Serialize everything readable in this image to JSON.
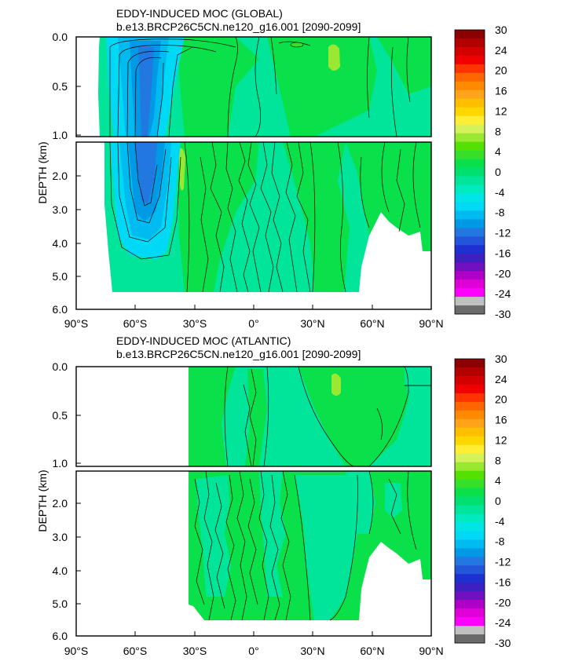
{
  "chart_data": [
    {
      "type": "heatmap",
      "title": "EDDY-INDUCED MOC (GLOBAL)",
      "subtitle": "b.e13.BRCP26C5CN.ne120_g16.001 [2090-2099]",
      "ylabel": "DEPTH (km)",
      "xlim": [
        -90,
        90
      ],
      "ylim_upper": [
        0.0,
        1.0
      ],
      "ylim_lower": [
        1.0,
        6.0
      ],
      "x_ticks": [
        "90°S",
        "60°S",
        "30°S",
        "0°",
        "30°N",
        "60°N",
        "90°N"
      ],
      "y_ticks_upper": [
        "0.0",
        "0.5",
        "1.0"
      ],
      "y_ticks_lower": [
        "2.0",
        "3.0",
        "4.0",
        "5.0",
        "6.0"
      ],
      "basin_start_lat": -80,
      "features": [
        {
          "name": "southern-ocean-cell",
          "lat": [
            -68,
            -38
          ],
          "depth": [
            0.0,
            4.6
          ],
          "min_value": -14
        },
        {
          "name": "southern-flank-positive",
          "lat": [
            -36,
            -30
          ],
          "depth": [
            1.2,
            2.6
          ],
          "max_value": 2
        },
        {
          "name": "northern-positive-cell",
          "lat": [
            38,
            46
          ],
          "depth": [
            0.0,
            0.9
          ],
          "max_value": 3
        },
        {
          "name": "equatorial-positive",
          "lat": [
            8,
            14
          ],
          "depth": [
            0.0,
            0.3
          ],
          "max_value": 2
        }
      ]
    },
    {
      "type": "heatmap",
      "title": "EDDY-INDUCED MOC (ATLANTIC)",
      "subtitle": "b.e13.BRCP26C5CN.ne120_g16.001 [2090-2099]",
      "ylabel": "DEPTH (km)",
      "xlim": [
        -90,
        90
      ],
      "ylim_upper": [
        0.0,
        1.0
      ],
      "ylim_lower": [
        1.0,
        6.0
      ],
      "x_ticks": [
        "90°S",
        "60°S",
        "30°S",
        "0°",
        "30°N",
        "60°N",
        "90°N"
      ],
      "y_ticks_upper": [
        "0.0",
        "0.5",
        "1.0"
      ],
      "y_ticks_lower": [
        "2.0",
        "3.0",
        "4.0",
        "5.0",
        "6.0"
      ],
      "basin_start_lat": -34,
      "features": [
        {
          "name": "northern-positive-cell",
          "lat": [
            38,
            44
          ],
          "depth": [
            0.0,
            0.9
          ],
          "max_value": 2
        }
      ]
    }
  ],
  "colorbar": {
    "labels": [
      "30",
      "24",
      "20",
      "16",
      "12",
      "8",
      "4",
      "0",
      "-4",
      "-8",
      "-12",
      "-16",
      "-20",
      "-24",
      "-30"
    ],
    "colors": [
      "#8b0000",
      "#b30000",
      "#d40000",
      "#f00000",
      "#ff3300",
      "#ff6600",
      "#ff8a00",
      "#ffa31a",
      "#ffbf00",
      "#ffd700",
      "#ffee33",
      "#d6f25a",
      "#9be832",
      "#54e000",
      "#36e02a",
      "#0ae04a",
      "#00e06e",
      "#00e59a",
      "#00eabf",
      "#00e6e6",
      "#00d9f5",
      "#00bbf0",
      "#0099e6",
      "#2278e0",
      "#2255d9",
      "#1e30d0",
      "#3c20c0",
      "#7010c0",
      "#b000c8",
      "#e000d8",
      "#ff00ff",
      "#c0c0c0",
      "#6a6a6a"
    ]
  }
}
